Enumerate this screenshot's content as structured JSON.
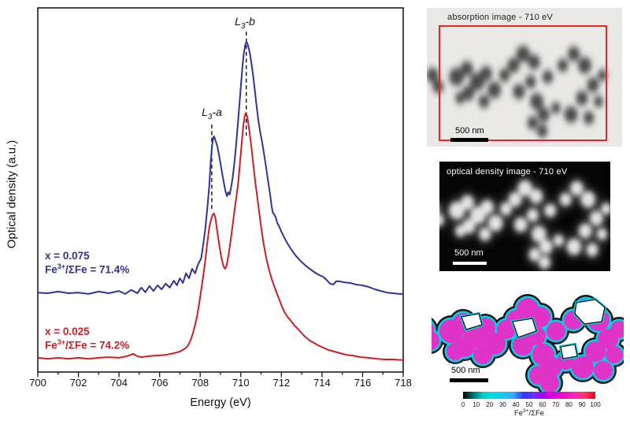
{
  "figure": {
    "plot": {
      "y_axis_title": "Optical density (a.u.)",
      "x_axis_title": "Energy (eV)",
      "x_tick_labels": [
        "700",
        "702",
        "704",
        "706",
        "708",
        "710",
        "712",
        "714",
        "716",
        "718"
      ],
      "peak_labels": [
        {
          "letter": "L",
          "sub": "3",
          "rest": "-a"
        },
        {
          "letter": "L",
          "sub": "3",
          "rest": "-b"
        }
      ],
      "annotations": [
        {
          "line1": "x = 0.075",
          "fe": "Fe",
          "sup": "3+",
          "rest": "/ΣFe = 71.4%"
        },
        {
          "line1": "x = 0.025",
          "fe": "Fe",
          "sup": "3+",
          "rest": "/ΣFe = 74.2%"
        }
      ]
    },
    "panels": {
      "absorption": {
        "title": "absorption image - 710 eV",
        "scale_bar": "500 nm"
      },
      "optical_density": {
        "title": "optical density image - 710 eV",
        "scale_bar": "500 nm"
      },
      "map": {
        "scale_bar": "500 nm"
      }
    },
    "colorbar": {
      "tick_labels": [
        "0",
        "10",
        "20",
        "30",
        "40",
        "50",
        "60",
        "70",
        "80",
        "90",
        "100"
      ],
      "label_fe": "Fe",
      "label_sup": "3+",
      "label_rest": "/ΣFe"
    }
  },
  "chart_data": {
    "type": "line",
    "xlabel": "Energy (eV)",
    "ylabel": "Optical density (a.u.)",
    "xlim": [
      700,
      718
    ],
    "grid": false,
    "x_major_ticks": [
      700,
      702,
      704,
      706,
      708,
      710,
      712,
      714,
      716,
      718
    ],
    "x_minor_ticks": [
      701,
      703,
      705,
      707,
      709,
      711,
      713,
      715,
      717
    ],
    "peak_markers": [
      {
        "id": "a",
        "label": "L3-a",
        "energy_eV": 708.57,
        "od_top": 0.748,
        "od_bottom": 0.486
      },
      {
        "id": "b",
        "label": "L3-b",
        "energy_eV": 710.27,
        "od_top": 1.028,
        "od_bottom": 0.714
      }
    ],
    "series": [
      {
        "id": "x0075",
        "label": "x = 0.075",
        "note": "Fe3+/SigmaFe = 71.4%",
        "color": "#32329b",
        "points": [
          [
            700,
            0.24
          ],
          [
            700.5,
            0.238
          ],
          [
            701,
            0.243
          ],
          [
            701.5,
            0.238
          ],
          [
            702,
            0.24
          ],
          [
            702.5,
            0.236
          ],
          [
            703,
            0.243
          ],
          [
            703.5,
            0.238
          ],
          [
            704,
            0.245
          ],
          [
            704.3,
            0.236
          ],
          [
            704.6,
            0.248
          ],
          [
            704.9,
            0.238
          ],
          [
            705.1,
            0.255
          ],
          [
            705.3,
            0.241
          ],
          [
            705.5,
            0.26
          ],
          [
            705.7,
            0.245
          ],
          [
            705.9,
            0.262
          ],
          [
            706.1,
            0.25
          ],
          [
            706.3,
            0.267
          ],
          [
            706.5,
            0.255
          ],
          [
            706.7,
            0.276
          ],
          [
            706.85,
            0.262
          ],
          [
            707,
            0.283
          ],
          [
            707.15,
            0.269
          ],
          [
            707.3,
            0.298
          ],
          [
            707.45,
            0.283
          ],
          [
            707.6,
            0.312
          ],
          [
            707.75,
            0.298
          ],
          [
            707.9,
            0.326
          ],
          [
            708.05,
            0.343
          ],
          [
            708.15,
            0.386
          ],
          [
            708.25,
            0.433
          ],
          [
            708.35,
            0.493
          ],
          [
            708.45,
            0.564
          ],
          [
            708.52,
            0.636
          ],
          [
            708.58,
            0.683
          ],
          [
            708.64,
            0.707
          ],
          [
            708.68,
            0.712
          ],
          [
            708.75,
            0.7
          ],
          [
            708.85,
            0.681
          ],
          [
            708.95,
            0.648
          ],
          [
            709.05,
            0.612
          ],
          [
            709.15,
            0.576
          ],
          [
            709.25,
            0.545
          ],
          [
            709.32,
            0.531
          ],
          [
            709.38,
            0.543
          ],
          [
            709.45,
            0.536
          ],
          [
            709.52,
            0.557
          ],
          [
            709.6,
            0.588
          ],
          [
            709.7,
            0.64
          ],
          [
            709.8,
            0.707
          ],
          [
            709.9,
            0.783
          ],
          [
            710,
            0.862
          ],
          [
            710.08,
            0.921
          ],
          [
            710.15,
            0.962
          ],
          [
            710.22,
            0.988
          ],
          [
            710.28,
            0.998
          ],
          [
            710.35,
            0.988
          ],
          [
            710.45,
            0.962
          ],
          [
            710.55,
            0.921
          ],
          [
            710.65,
            0.874
          ],
          [
            710.75,
            0.819
          ],
          [
            710.85,
            0.767
          ],
          [
            710.95,
            0.726
          ],
          [
            711.05,
            0.695
          ],
          [
            711.15,
            0.657
          ],
          [
            711.25,
            0.617
          ],
          [
            711.35,
            0.574
          ],
          [
            711.45,
            0.533
          ],
          [
            711.52,
            0.5
          ],
          [
            711.58,
            0.481
          ],
          [
            711.65,
            0.476
          ],
          [
            711.72,
            0.467
          ],
          [
            711.8,
            0.45
          ],
          [
            711.9,
            0.438
          ],
          [
            712,
            0.424
          ],
          [
            712.15,
            0.405
          ],
          [
            712.3,
            0.388
          ],
          [
            712.5,
            0.369
          ],
          [
            712.7,
            0.352
          ],
          [
            712.9,
            0.338
          ],
          [
            713.2,
            0.321
          ],
          [
            713.5,
            0.307
          ],
          [
            713.8,
            0.295
          ],
          [
            714.1,
            0.286
          ],
          [
            714.4,
            0.267
          ],
          [
            714.55,
            0.264
          ],
          [
            714.7,
            0.274
          ],
          [
            714.85,
            0.274
          ],
          [
            715.1,
            0.271
          ],
          [
            715.4,
            0.269
          ],
          [
            715.7,
            0.264
          ],
          [
            716,
            0.262
          ],
          [
            716.3,
            0.257
          ],
          [
            716.6,
            0.25
          ],
          [
            716.9,
            0.245
          ],
          [
            717.2,
            0.24
          ],
          [
            717.5,
            0.238
          ],
          [
            717.8,
            0.236
          ],
          [
            718,
            0.236
          ]
        ]
      },
      {
        "id": "x0025",
        "label": "x = 0.025",
        "note": "Fe3+/SigmaFe = 74.2%",
        "color": "#cb2027",
        "points": [
          [
            700,
            0.043
          ],
          [
            700.5,
            0.04
          ],
          [
            701,
            0.043
          ],
          [
            701.5,
            0.04
          ],
          [
            702,
            0.043
          ],
          [
            702.5,
            0.04
          ],
          [
            703,
            0.043
          ],
          [
            703.5,
            0.045
          ],
          [
            704,
            0.043
          ],
          [
            704.4,
            0.048
          ],
          [
            704.7,
            0.055
          ],
          [
            704.9,
            0.048
          ],
          [
            705.1,
            0.045
          ],
          [
            705.5,
            0.048
          ],
          [
            705.9,
            0.05
          ],
          [
            706.3,
            0.052
          ],
          [
            706.7,
            0.057
          ],
          [
            707,
            0.062
          ],
          [
            707.2,
            0.069
          ],
          [
            707.35,
            0.076
          ],
          [
            707.45,
            0.086
          ],
          [
            707.55,
            0.1
          ],
          [
            707.65,
            0.119
          ],
          [
            707.75,
            0.143
          ],
          [
            707.85,
            0.171
          ],
          [
            707.95,
            0.207
          ],
          [
            708.05,
            0.248
          ],
          [
            708.15,
            0.29
          ],
          [
            708.25,
            0.338
          ],
          [
            708.35,
            0.39
          ],
          [
            708.45,
            0.438
          ],
          [
            708.55,
            0.464
          ],
          [
            708.62,
            0.476
          ],
          [
            708.68,
            0.479
          ],
          [
            708.75,
            0.464
          ],
          [
            708.85,
            0.421
          ],
          [
            708.95,
            0.379
          ],
          [
            709.05,
            0.343
          ],
          [
            709.15,
            0.319
          ],
          [
            709.22,
            0.312
          ],
          [
            709.3,
            0.321
          ],
          [
            709.4,
            0.355
          ],
          [
            709.5,
            0.398
          ],
          [
            709.6,
            0.445
          ],
          [
            709.7,
            0.493
          ],
          [
            709.8,
            0.536
          ],
          [
            709.88,
            0.576
          ],
          [
            709.96,
            0.631
          ],
          [
            710.04,
            0.688
          ],
          [
            710.12,
            0.743
          ],
          [
            710.2,
            0.776
          ],
          [
            710.26,
            0.783
          ],
          [
            710.33,
            0.767
          ],
          [
            710.42,
            0.729
          ],
          [
            710.52,
            0.681
          ],
          [
            710.62,
            0.624
          ],
          [
            710.72,
            0.571
          ],
          [
            710.82,
            0.524
          ],
          [
            710.92,
            0.476
          ],
          [
            711.02,
            0.429
          ],
          [
            711.12,
            0.39
          ],
          [
            711.25,
            0.345
          ],
          [
            711.4,
            0.307
          ],
          [
            711.55,
            0.276
          ],
          [
            711.7,
            0.25
          ],
          [
            711.85,
            0.226
          ],
          [
            712,
            0.202
          ],
          [
            712.15,
            0.181
          ],
          [
            712.3,
            0.167
          ],
          [
            712.4,
            0.16
          ],
          [
            712.5,
            0.152
          ],
          [
            712.65,
            0.14
          ],
          [
            712.8,
            0.131
          ],
          [
            712.9,
            0.124
          ],
          [
            713.05,
            0.114
          ],
          [
            713.2,
            0.105
          ],
          [
            713.4,
            0.095
          ],
          [
            713.6,
            0.088
          ],
          [
            713.8,
            0.081
          ],
          [
            714.05,
            0.074
          ],
          [
            714.3,
            0.067
          ],
          [
            714.6,
            0.062
          ],
          [
            714.9,
            0.057
          ],
          [
            715.2,
            0.052
          ],
          [
            715.5,
            0.05
          ],
          [
            715.9,
            0.045
          ],
          [
            716.3,
            0.043
          ],
          [
            716.7,
            0.04
          ],
          [
            717.1,
            0.038
          ],
          [
            717.5,
            0.038
          ],
          [
            718,
            0.036
          ]
        ]
      }
    ]
  }
}
